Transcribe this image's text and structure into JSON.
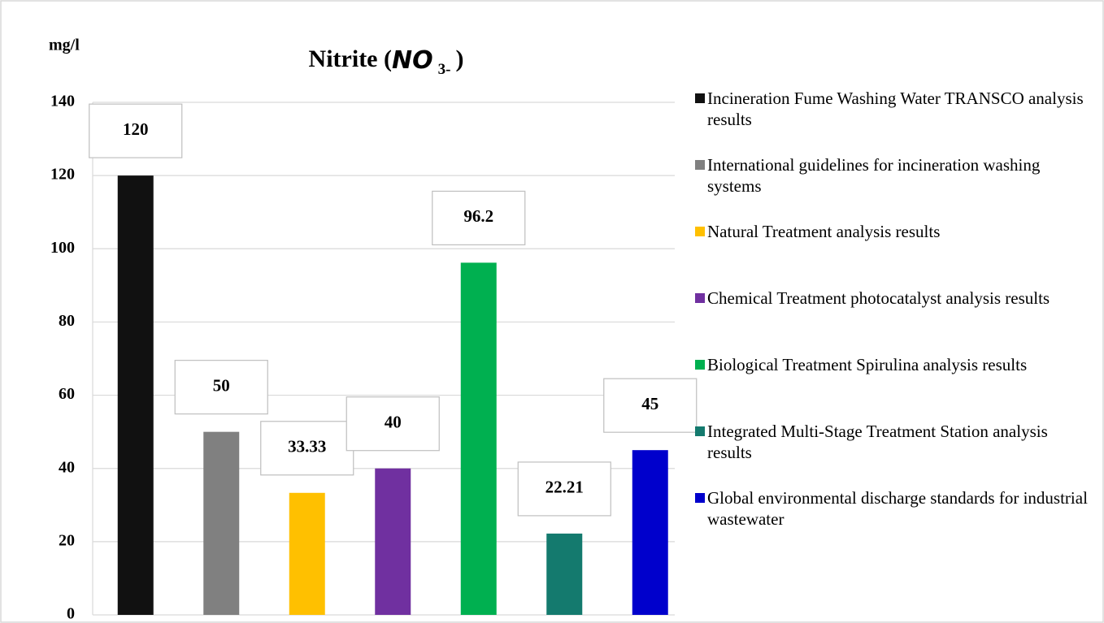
{
  "chart_data": {
    "type": "bar",
    "title": {
      "text": "Nitrite (",
      "formula": "NO",
      "subscript": "3-",
      "close": ")"
    },
    "y_label": "mg/l",
    "categories": [
      "Incineration Fume Washing Water TRANSCO  analysis results",
      "International guidelines for incineration washing systems",
      "Natural Treatment  analysis results",
      "Chemical Treatment photocatalyst analysis results",
      "Biological Treatment Spirulina analysis results",
      "Integrated Multi-Stage Treatment Station analysis results",
      "Global environmental discharge standards for industrial wastewater"
    ],
    "values": [
      120,
      50,
      33.33,
      40,
      96.2,
      22.21,
      45
    ],
    "colors": [
      "#111111",
      "#808080",
      "#ffc000",
      "#7030a0",
      "#00b050",
      "#147a6e",
      "#0000cc"
    ],
    "ylim": [
      0,
      140
    ],
    "yticks": [
      0,
      20,
      40,
      60,
      80,
      100,
      120,
      140
    ],
    "grid": true,
    "legend": "right"
  }
}
